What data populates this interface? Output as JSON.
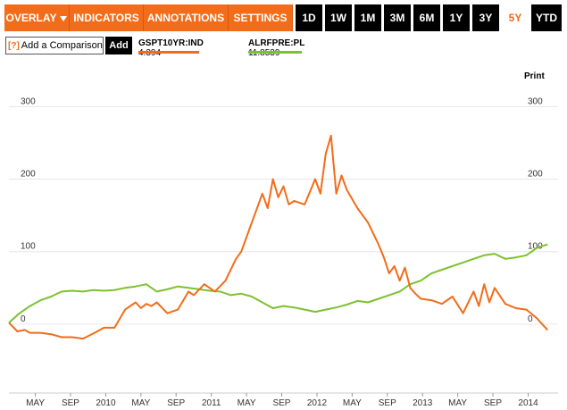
{
  "toolbar": {
    "menus": [
      {
        "label": "OVERLAY"
      },
      {
        "label": "INDICATORS"
      },
      {
        "label": "ANNOTATIONS"
      },
      {
        "label": "SETTINGS"
      }
    ],
    "ranges": [
      {
        "label": "1D"
      },
      {
        "label": "1W"
      },
      {
        "label": "1M"
      },
      {
        "label": "3M"
      },
      {
        "label": "6M"
      },
      {
        "label": "1Y"
      },
      {
        "label": "3Y"
      },
      {
        "label": "5Y"
      },
      {
        "label": "YTD"
      }
    ],
    "active_range": "5Y"
  },
  "compare": {
    "help_icon": "?",
    "placeholder": "Add a Comparison",
    "add_label": "Add"
  },
  "print_label": "Print",
  "colors": {
    "accent": "#f26c1a",
    "series1": "#f26c1a",
    "series2": "#7dc12f"
  },
  "chart_data": {
    "type": "line",
    "y_ticks": [
      "300",
      "200",
      "100",
      "0"
    ],
    "y_tick_values": [
      300,
      200,
      100,
      0
    ],
    "ylim": [
      -95,
      330
    ],
    "x_tick_labels": [
      "MAY",
      "SEP",
      "2010",
      "MAY",
      "SEP",
      "2011",
      "MAY",
      "SEP",
      "2012",
      "MAY",
      "SEP",
      "2013",
      "MAY",
      "SEP",
      "2014"
    ],
    "x_tick_values": [
      0.25,
      0.583,
      0.917,
      1.25,
      1.583,
      1.917,
      2.25,
      2.583,
      2.917,
      3.25,
      3.583,
      3.917,
      4.25,
      4.583,
      4.917
    ],
    "xlim": [
      0,
      5.2
    ],
    "series": [
      {
        "name": "GSPT10YR:IND",
        "last_value": "4.394",
        "x": [
          0,
          0.08,
          0.15,
          0.2,
          0.3,
          0.4,
          0.5,
          0.6,
          0.7,
          0.8,
          0.9,
          1.0,
          1.1,
          1.2,
          1.25,
          1.3,
          1.35,
          1.4,
          1.5,
          1.6,
          1.7,
          1.75,
          1.85,
          1.95,
          2.05,
          2.15,
          2.2,
          2.3,
          2.4,
          2.45,
          2.5,
          2.55,
          2.6,
          2.65,
          2.7,
          2.8,
          2.9,
          2.95,
          3.0,
          3.05,
          3.1,
          3.15,
          3.2,
          3.3,
          3.4,
          3.5,
          3.55,
          3.6,
          3.65,
          3.7,
          3.75,
          3.8,
          3.85,
          3.9,
          4.0,
          4.1,
          4.2,
          4.3,
          4.4,
          4.45,
          4.5,
          4.55,
          4.6,
          4.7,
          4.8,
          4.9,
          5.0,
          5.05,
          5.1
        ],
        "values": [
          2,
          -10,
          -8,
          -12,
          -12,
          -14,
          -18,
          -18,
          -20,
          -13,
          -5,
          -5,
          20,
          30,
          22,
          28,
          25,
          30,
          15,
          20,
          45,
          40,
          55,
          45,
          60,
          90,
          100,
          140,
          180,
          160,
          200,
          175,
          190,
          165,
          170,
          165,
          200,
          180,
          235,
          260,
          180,
          205,
          185,
          160,
          140,
          110,
          92,
          70,
          80,
          60,
          78,
          50,
          42,
          35,
          33,
          28,
          38,
          15,
          45,
          25,
          55,
          30,
          50,
          28,
          22,
          20,
          8,
          0,
          -8
        ],
        "color": "#f26c1a"
      },
      {
        "name": "ALRFPRE:PL",
        "last_value": "11.8539",
        "x": [
          0,
          0.1,
          0.2,
          0.3,
          0.4,
          0.5,
          0.6,
          0.7,
          0.8,
          0.9,
          1.0,
          1.1,
          1.2,
          1.3,
          1.4,
          1.5,
          1.6,
          1.7,
          1.8,
          1.9,
          2.0,
          2.1,
          2.2,
          2.3,
          2.4,
          2.5,
          2.6,
          2.7,
          2.8,
          2.9,
          3.0,
          3.1,
          3.2,
          3.3,
          3.4,
          3.5,
          3.6,
          3.7,
          3.8,
          3.9,
          4.0,
          4.1,
          4.2,
          4.3,
          4.4,
          4.5,
          4.6,
          4.7,
          4.8,
          4.9,
          5.0,
          5.1
        ],
        "values": [
          2,
          15,
          25,
          33,
          38,
          45,
          46,
          45,
          47,
          46,
          47,
          50,
          52,
          55,
          45,
          48,
          52,
          50,
          48,
          46,
          45,
          40,
          42,
          38,
          30,
          22,
          25,
          23,
          20,
          17,
          20,
          23,
          27,
          32,
          30,
          35,
          40,
          45,
          55,
          60,
          70,
          75,
          80,
          85,
          90,
          95,
          97,
          90,
          92,
          95,
          105,
          110
        ],
        "color": "#7dc12f"
      }
    ]
  }
}
